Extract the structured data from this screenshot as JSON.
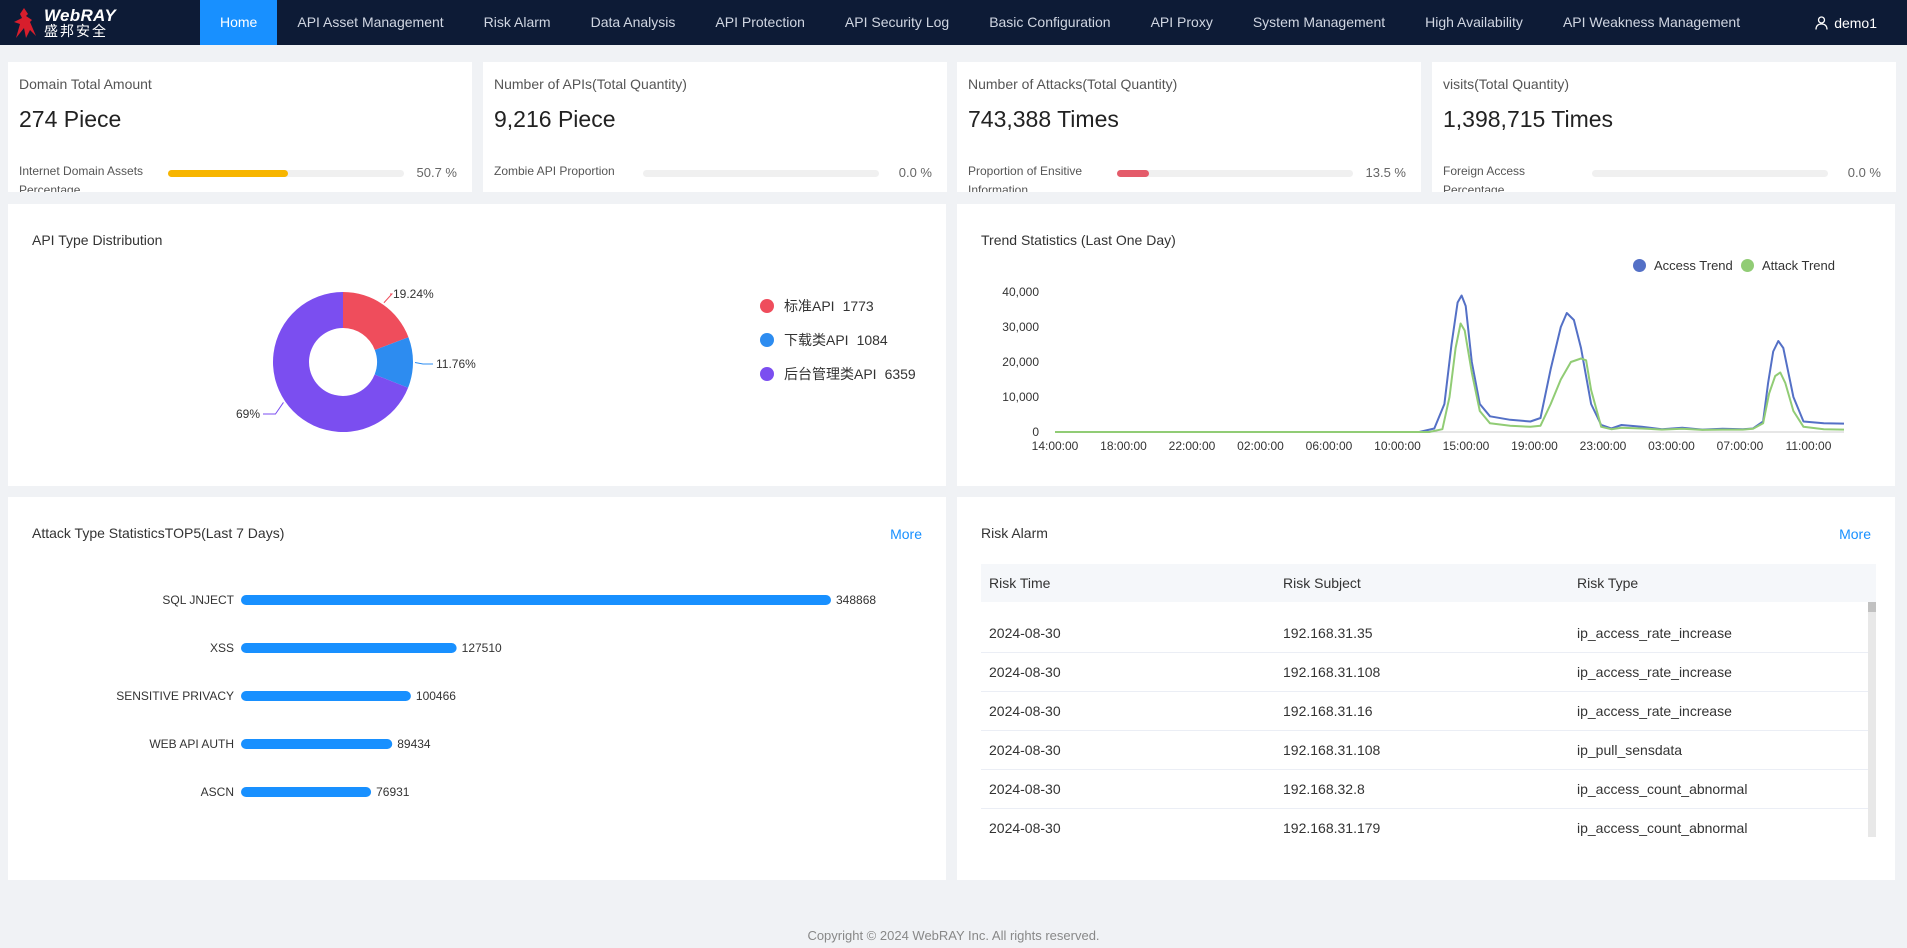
{
  "brand": {
    "name_en_prefix": "Web",
    "name_en_suffix": "RAY",
    "name_cn": "盛邦安全"
  },
  "nav": {
    "items": [
      "Home",
      "API Asset Management",
      "Risk Alarm",
      "Data Analysis",
      "API Protection",
      "API Security Log",
      "Basic Configuration",
      "API Proxy",
      "System Management",
      "High Availability",
      "API Weakness Management"
    ],
    "active_index": 0
  },
  "user": {
    "name": "demo1",
    "icon": "user-icon"
  },
  "stats": [
    {
      "title": "Domain Total Amount",
      "value": "274 Piece",
      "label": "Internet Domain Assets Percentage",
      "percent": 50.7,
      "percent_text": "50.7 %",
      "color": "#f7b500"
    },
    {
      "title": "Number of APIs(Total Quantity)",
      "value": "9,216 Piece",
      "label": "Zombie API Proportion",
      "percent": 0.0,
      "percent_text": "0.0 %",
      "color": "#1890ff"
    },
    {
      "title": "Number of Attacks(Total Quantity)",
      "value": "743,388 Times",
      "label": "Proportion of Ensitive Information",
      "percent": 13.5,
      "percent_text": "13.5 %",
      "color": "#e45b6a"
    },
    {
      "title": "visits(Total Quantity)",
      "value": "1,398,715 Times",
      "label": "Foreign Access Percentage",
      "percent": 0.0,
      "percent_text": "0.0 %",
      "color": "#1890ff"
    }
  ],
  "api_distribution": {
    "title": "API Type Distribution",
    "chart_data": {
      "type": "pie",
      "slices": [
        {
          "name": "标准API",
          "value": 1773,
          "label": "19.24%",
          "color": "#ef4d5c"
        },
        {
          "name": "下载类API",
          "value": 1084,
          "label": "11.76%",
          "color": "#2d8cf0"
        },
        {
          "name": "后台管理类API",
          "value": 6359,
          "label": "69%",
          "color": "#7b4ef0"
        }
      ]
    },
    "legend": [
      {
        "name": "标准API",
        "value": "1773",
        "color": "#ef4d5c"
      },
      {
        "name": "下载类API",
        "value": "1084",
        "color": "#2d8cf0"
      },
      {
        "name": "后台管理类API",
        "value": "6359",
        "color": "#7b4ef0"
      }
    ]
  },
  "trend": {
    "title": "Trend Statistics (Last One Day)",
    "chart_data": {
      "type": "line",
      "x_ticks": [
        "14:00:00",
        "18:00:00",
        "22:00:00",
        "02:00:00",
        "06:00:00",
        "10:00:00",
        "15:00:00",
        "19:00:00",
        "23:00:00",
        "03:00:00",
        "07:00:00",
        "11:00:00"
      ],
      "y_ticks": [
        "0",
        "10,000",
        "20,000",
        "30,000",
        "40,000"
      ],
      "ylim": [
        0,
        40000
      ],
      "series": [
        {
          "name": "Access Trend",
          "color": "#5470c6",
          "points": [
            [
              0,
              0
            ],
            [
              10,
              0
            ],
            [
              20,
              0
            ],
            [
              30,
              0
            ],
            [
              36,
              0
            ],
            [
              37.5,
              1000
            ],
            [
              38.5,
              8000
            ],
            [
              39.2,
              25000
            ],
            [
              39.8,
              37000
            ],
            [
              40.2,
              39000
            ],
            [
              40.6,
              36000
            ],
            [
              41.2,
              20000
            ],
            [
              42,
              8000
            ],
            [
              43,
              4500
            ],
            [
              45,
              3500
            ],
            [
              47,
              3000
            ],
            [
              48,
              4000
            ],
            [
              49,
              18000
            ],
            [
              50,
              30000
            ],
            [
              50.6,
              34000
            ],
            [
              51.3,
              32000
            ],
            [
              52,
              24000
            ],
            [
              53,
              8000
            ],
            [
              54,
              2000
            ],
            [
              55,
              1000
            ],
            [
              56,
              2000
            ],
            [
              58,
              1500
            ],
            [
              60,
              800
            ],
            [
              62,
              1200
            ],
            [
              64,
              700
            ],
            [
              66,
              900
            ],
            [
              68,
              800
            ],
            [
              69,
              1000
            ],
            [
              70,
              3000
            ],
            [
              70.5,
              14000
            ],
            [
              71,
              23000
            ],
            [
              71.5,
              26000
            ],
            [
              72,
              24000
            ],
            [
              73,
              10000
            ],
            [
              74,
              3000
            ],
            [
              76,
              2500
            ],
            [
              78,
              2400
            ]
          ]
        },
        {
          "name": "Attack Trend",
          "color": "#91cc75",
          "points": [
            [
              0,
              0
            ],
            [
              10,
              0
            ],
            [
              20,
              0
            ],
            [
              30,
              0
            ],
            [
              37,
              0
            ],
            [
              38.3,
              800
            ],
            [
              39,
              10000
            ],
            [
              39.6,
              24000
            ],
            [
              40.1,
              31000
            ],
            [
              40.5,
              29000
            ],
            [
              41.2,
              17000
            ],
            [
              42,
              6000
            ],
            [
              43,
              2500
            ],
            [
              45,
              1800
            ],
            [
              47,
              1500
            ],
            [
              48,
              1800
            ],
            [
              49,
              8000
            ],
            [
              50,
              15000
            ],
            [
              51,
              20000
            ],
            [
              52,
              21000
            ],
            [
              52.5,
              20500
            ],
            [
              53,
              12000
            ],
            [
              54,
              1500
            ],
            [
              55,
              800
            ],
            [
              56,
              1200
            ],
            [
              58,
              1000
            ],
            [
              60,
              700
            ],
            [
              62,
              900
            ],
            [
              64,
              600
            ],
            [
              66,
              700
            ],
            [
              68,
              700
            ],
            [
              69,
              900
            ],
            [
              70,
              2500
            ],
            [
              70.6,
              11000
            ],
            [
              71.2,
              16000
            ],
            [
              71.7,
              17000
            ],
            [
              72.2,
              14000
            ],
            [
              73,
              6000
            ],
            [
              74,
              1500
            ],
            [
              76,
              800
            ],
            [
              78,
              700
            ]
          ]
        }
      ]
    }
  },
  "attack_top5": {
    "title": "Attack Type StatisticsTOP5(Last 7 Days)",
    "more": "More",
    "chart_data": {
      "type": "bar",
      "orientation": "horizontal",
      "categories": [
        "SQL JNJECT",
        "XSS",
        "SENSITIVE PRIVACY",
        "WEB API AUTH",
        "ASCN"
      ],
      "values": [
        348868,
        127510,
        100466,
        89434,
        76931
      ],
      "color": "#1890ff"
    }
  },
  "risk_alarm": {
    "title": "Risk Alarm",
    "more": "More",
    "headers": [
      "Risk Time",
      "Risk Subject",
      "Risk Type"
    ],
    "rows": [
      [
        "2024-08-30",
        "192.168.31.35",
        "ip_access_rate_increase"
      ],
      [
        "2024-08-30",
        "192.168.31.108",
        "ip_access_rate_increase"
      ],
      [
        "2024-08-30",
        "192.168.31.16",
        "ip_access_rate_increase"
      ],
      [
        "2024-08-30",
        "192.168.31.108",
        "ip_pull_sensdata"
      ],
      [
        "2024-08-30",
        "192.168.32.8",
        "ip_access_count_abnormal"
      ],
      [
        "2024-08-30",
        "192.168.31.179",
        "ip_access_count_abnormal"
      ]
    ]
  },
  "footer": {
    "text": "Copyright © 2024 WebRAY Inc. All rights reserved."
  }
}
